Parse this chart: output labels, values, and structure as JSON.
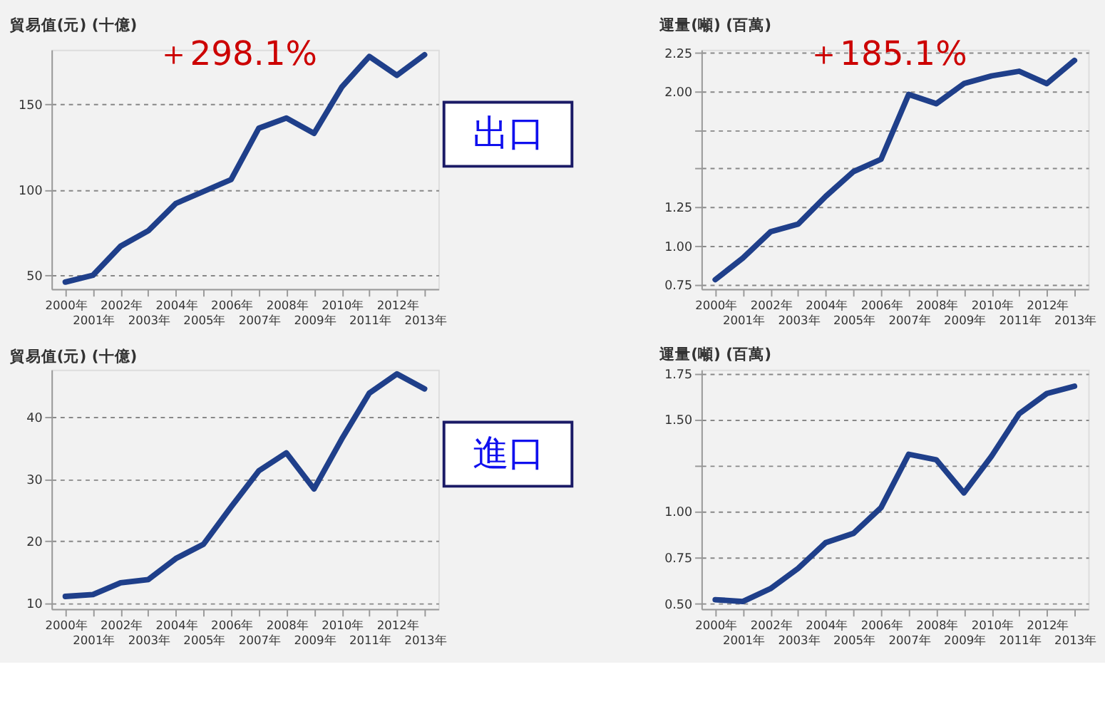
{
  "chart_data": [
    {
      "type": "line",
      "ylabel": "貿易值(元) (十億)",
      "categories": [
        "2000年",
        "2001年",
        "2002年",
        "2003年",
        "2004年",
        "2005年",
        "2006年",
        "2007年",
        "2008年",
        "2009年",
        "2010年",
        "2011年",
        "2012年",
        "2013年"
      ],
      "series": [
        {
          "color": "#1f3f8a",
          "values": [
            46,
            50,
            67,
            76,
            92,
            99,
            106,
            136,
            142,
            133,
            160,
            178,
            167,
            179
          ]
        }
      ],
      "ylim": [
        42,
        182
      ],
      "yticks": [
        50,
        100,
        150
      ],
      "grid": "y",
      "line_style": "solid",
      "marker": "none",
      "annotations": [
        "＋298.1%",
        "出口"
      ]
    },
    {
      "type": "line",
      "ylabel": "運量(噸) (百萬)",
      "categories": [
        "2000年",
        "2001年",
        "2002年",
        "2003年",
        "2004年",
        "2005年",
        "2006年",
        "2007年",
        "2008年",
        "2009年",
        "2010年",
        "2011年",
        "2012年",
        "2013年"
      ],
      "series": [
        {
          "color": "#1f3f8a",
          "values": [
            0.78,
            0.92,
            1.09,
            1.14,
            1.32,
            1.48,
            1.56,
            1.98,
            1.92,
            2.05,
            2.1,
            2.13,
            2.05,
            2.2
          ]
        }
      ],
      "ylim": [
        0.72,
        2.27
      ],
      "yticks": [
        {
          "value": 0.75,
          "label": "0.75"
        },
        {
          "value": 1,
          "label": "1.00"
        },
        {
          "value": 1.25,
          "label": "1.25"
        },
        {
          "value": 1.5,
          "label": null
        },
        {
          "value": 1.75,
          "label": null
        },
        {
          "value": 2,
          "label": "2.00"
        },
        {
          "value": 2.25,
          "label": "2.25"
        }
      ],
      "grid": "y",
      "line_style": "solid",
      "marker": "none",
      "annotations": [
        "＋185.1%"
      ]
    },
    {
      "type": "line",
      "ylabel": "貿易值(元) (十億)",
      "categories": [
        "2000年",
        "2001年",
        "2002年",
        "2003年",
        "2004年",
        "2005年",
        "2006年",
        "2007年",
        "2008年",
        "2009年",
        "2010年",
        "2011年",
        "2012年",
        "2013年"
      ],
      "series": [
        {
          "color": "#1f3f8a",
          "values": [
            11.1,
            11.4,
            13.3,
            13.8,
            17.2,
            19.5,
            25.5,
            31.3,
            34.2,
            28.4,
            36.4,
            43.8,
            46.9,
            44.5
          ]
        }
      ],
      "ylim": [
        9.1,
        47.6
      ],
      "yticks": [
        10,
        20,
        30,
        40
      ],
      "grid": "y",
      "line_style": "solid",
      "marker": "none",
      "annotations": [
        "進口"
      ]
    },
    {
      "type": "line",
      "ylabel": "運量(噸) (百萬)",
      "categories": [
        "2000年",
        "2001年",
        "2002年",
        "2003年",
        "2004年",
        "2005年",
        "2006年",
        "2007年",
        "2008年",
        "2009年",
        "2010年",
        "2011年",
        "2012年",
        "2013年"
      ],
      "series": [
        {
          "color": "#1f3f8a",
          "values": [
            0.52,
            0.51,
            0.58,
            0.69,
            0.83,
            0.88,
            1.02,
            1.31,
            1.28,
            1.1,
            1.3,
            1.53,
            1.64,
            1.68
          ]
        }
      ],
      "ylim": [
        0.47,
        1.77
      ],
      "yticks": [
        {
          "value": 0.5,
          "label": "0.50"
        },
        {
          "value": 0.75,
          "label": "0.75"
        },
        {
          "value": 1,
          "label": "1.00"
        },
        {
          "value": 1.25,
          "label": null
        },
        {
          "value": 1.5,
          "label": "1.50"
        },
        {
          "value": 1.75,
          "label": "1.75"
        }
      ],
      "grid": "y",
      "line_style": "solid",
      "marker": "none"
    }
  ]
}
